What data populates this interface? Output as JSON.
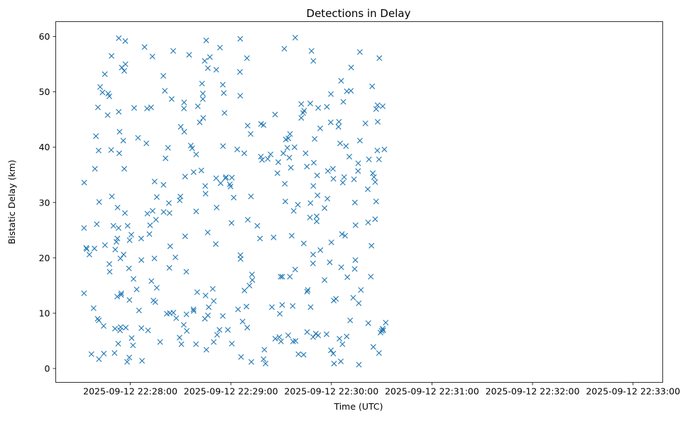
{
  "chart_data": {
    "type": "scatter",
    "title": "Detections in Delay",
    "xlabel": "Time (UTC)",
    "ylabel": "Bistatic Delay (km)",
    "x_tick_labels": [
      "2025-09-12 22:28:00",
      "2025-09-12 22:29:00",
      "2025-09-12 22:30:00",
      "2025-09-12 22:31:00",
      "2025-09-12 22:32:00",
      "2025-09-12 22:33:00"
    ],
    "x_ticks_seconds": [
      0,
      60,
      120,
      180,
      240,
      300
    ],
    "x_range_seconds": [
      -44.5,
      317.7
    ],
    "y_ticks": [
      0,
      10,
      20,
      30,
      40,
      50,
      60
    ],
    "ylim": [
      -2.5,
      62.7
    ],
    "marker": "x",
    "color": "#1f77b4",
    "grid": false,
    "points": [
      [
        -27.5,
        33.6
      ],
      [
        -27.6,
        25.4
      ],
      [
        -27.6,
        13.6
      ],
      [
        -26.3,
        21.8
      ],
      [
        -26.0,
        21.6
      ],
      [
        -24.4,
        20.6
      ],
      [
        -23.2,
        2.6
      ],
      [
        -21.9,
        10.9
      ],
      [
        -21.4,
        21.7
      ],
      [
        -21.1,
        36.1
      ],
      [
        -20.5,
        42.0
      ],
      [
        -20.0,
        26.1
      ],
      [
        -19.5,
        9.0
      ],
      [
        -19.3,
        47.2
      ],
      [
        -18.9,
        39.4
      ],
      [
        -18.8,
        8.7
      ],
      [
        -18.7,
        1.7
      ],
      [
        -18.6,
        30.1
      ],
      [
        -18.0,
        50.9
      ],
      [
        -16.6,
        49.9
      ],
      [
        -15.9,
        7.7
      ],
      [
        -15.8,
        2.7
      ],
      [
        -15.2,
        53.2
      ],
      [
        -15.1,
        22.3
      ],
      [
        -13.5,
        45.8
      ],
      [
        -13.2,
        49.7
      ],
      [
        -12.5,
        49.2
      ],
      [
        -12.5,
        18.9
      ],
      [
        -12.3,
        17.5
      ],
      [
        -11.4,
        39.5
      ],
      [
        -11.2,
        56.5
      ],
      [
        -11.0,
        31.1
      ],
      [
        -10.1,
        25.8
      ],
      [
        -9.4,
        2.8
      ],
      [
        -9.1,
        7.2
      ],
      [
        -9.0,
        21.5
      ],
      [
        -8.3,
        22.9
      ],
      [
        -7.8,
        13.0
      ],
      [
        -7.7,
        23.5
      ],
      [
        -7.6,
        29.1
      ],
      [
        -7.2,
        4.5
      ],
      [
        -7.0,
        25.4
      ],
      [
        -6.9,
        59.7
      ],
      [
        -6.9,
        46.4
      ],
      [
        -6.6,
        38.9
      ],
      [
        -6.4,
        42.8
      ],
      [
        -6.1,
        6.9
      ],
      [
        -5.9,
        19.9
      ],
      [
        -5.8,
        7.5
      ],
      [
        -5.5,
        13.3
      ],
      [
        -5.4,
        13.6
      ],
      [
        -5.1,
        54.4
      ],
      [
        -4.2,
        41.2
      ],
      [
        -4.0,
        20.6
      ],
      [
        -3.6,
        36.1
      ],
      [
        -3.6,
        53.8
      ],
      [
        -3.2,
        28.1
      ],
      [
        -3.0,
        59.2
      ],
      [
        -2.9,
        55.0
      ],
      [
        -2.7,
        7.4
      ],
      [
        -1.9,
        1.2
      ],
      [
        -1.6,
        25.8
      ],
      [
        -0.8,
        18.1
      ],
      [
        -0.6,
        2.0
      ],
      [
        -0.5,
        12.4
      ],
      [
        -0.4,
        23.2
      ],
      [
        0.6,
        24.2
      ],
      [
        0.8,
        5.5
      ],
      [
        1.6,
        4.2
      ],
      [
        1.9,
        16.2
      ],
      [
        2.3,
        47.1
      ],
      [
        3.8,
        14.3
      ],
      [
        4.6,
        41.7
      ],
      [
        5.2,
        10.5
      ],
      [
        6.5,
        23.5
      ],
      [
        6.6,
        19.6
      ],
      [
        6.6,
        7.3
      ],
      [
        7.0,
        1.4
      ],
      [
        8.5,
        58.1
      ],
      [
        9.6,
        40.7
      ],
      [
        10.0,
        47.0
      ],
      [
        10.2,
        28.0
      ],
      [
        10.6,
        6.9
      ],
      [
        11.4,
        24.3
      ],
      [
        11.8,
        25.9
      ],
      [
        12.4,
        47.2
      ],
      [
        12.6,
        15.8
      ],
      [
        13.2,
        56.4
      ],
      [
        13.3,
        28.5
      ],
      [
        13.8,
        12.3
      ],
      [
        14.4,
        19.9
      ],
      [
        14.5,
        33.8
      ],
      [
        14.9,
        12.0
      ],
      [
        15.3,
        26.9
      ],
      [
        15.8,
        14.6
      ],
      [
        15.8,
        31.0
      ],
      [
        17.8,
        4.8
      ],
      [
        19.7,
        52.9
      ],
      [
        19.8,
        33.2
      ],
      [
        19.9,
        28.3
      ],
      [
        20.6,
        50.2
      ],
      [
        21.0,
        38.0
      ],
      [
        21.8,
        9.9
      ],
      [
        22.5,
        39.9
      ],
      [
        23.0,
        29.9
      ],
      [
        23.3,
        18.2
      ],
      [
        23.4,
        28.1
      ],
      [
        23.6,
        10.0
      ],
      [
        23.8,
        22.1
      ],
      [
        24.7,
        48.7
      ],
      [
        25.6,
        57.4
      ],
      [
        25.7,
        10.1
      ],
      [
        26.9,
        20.1
      ],
      [
        27.4,
        9.1
      ],
      [
        29.4,
        5.6
      ],
      [
        29.5,
        30.4
      ],
      [
        29.9,
        31.1
      ],
      [
        30.1,
        43.7
      ],
      [
        30.5,
        4.4
      ],
      [
        31.9,
        7.9
      ],
      [
        32.0,
        47.0
      ],
      [
        32.1,
        48.1
      ],
      [
        32.2,
        42.8
      ],
      [
        32.7,
        34.7
      ],
      [
        32.7,
        23.9
      ],
      [
        33.4,
        17.5
      ],
      [
        33.5,
        9.8
      ],
      [
        33.7,
        6.8
      ],
      [
        35.1,
        56.7
      ],
      [
        36.1,
        40.3
      ],
      [
        36.9,
        39.8
      ],
      [
        37.7,
        10.7
      ],
      [
        37.8,
        10.4
      ],
      [
        37.8,
        35.5
      ],
      [
        39.2,
        4.4
      ],
      [
        39.3,
        28.4
      ],
      [
        39.3,
        38.7
      ],
      [
        39.9,
        13.8
      ],
      [
        40.3,
        47.4
      ],
      [
        41.4,
        44.5
      ],
      [
        42.4,
        35.8
      ],
      [
        42.8,
        51.5
      ],
      [
        43.3,
        49.7
      ],
      [
        43.3,
        48.7
      ],
      [
        43.5,
        45.3
      ],
      [
        44.4,
        55.6
      ],
      [
        44.5,
        9.0
      ],
      [
        44.7,
        33.0
      ],
      [
        44.9,
        13.2
      ],
      [
        44.9,
        31.6
      ],
      [
        45.3,
        59.3
      ],
      [
        45.4,
        3.4
      ],
      [
        46.2,
        24.6
      ],
      [
        46.3,
        9.6
      ],
      [
        46.3,
        54.3
      ],
      [
        46.8,
        11.1
      ],
      [
        47.5,
        56.3
      ],
      [
        49.2,
        14.4
      ],
      [
        49.8,
        4.8
      ],
      [
        49.8,
        12.2
      ],
      [
        51.0,
        22.5
      ],
      [
        51.2,
        34.4
      ],
      [
        51.3,
        54.0
      ],
      [
        51.5,
        29.1
      ],
      [
        51.8,
        6.1
      ],
      [
        53.2,
        7.0
      ],
      [
        53.5,
        58.0
      ],
      [
        53.9,
        33.5
      ],
      [
        55.2,
        9.5
      ],
      [
        55.2,
        51.3
      ],
      [
        55.3,
        40.2
      ],
      [
        55.8,
        49.8
      ],
      [
        56.2,
        46.2
      ],
      [
        56.8,
        34.4
      ],
      [
        57.1,
        34.6
      ],
      [
        58.2,
        7.0
      ],
      [
        59.4,
        33.3
      ],
      [
        59.8,
        32.9
      ],
      [
        60.4,
        26.3
      ],
      [
        60.6,
        4.5
      ],
      [
        60.6,
        34.5
      ],
      [
        61.7,
        30.9
      ],
      [
        63.8,
        39.6
      ],
      [
        64.3,
        10.7
      ],
      [
        65.4,
        53.6
      ],
      [
        65.6,
        59.6
      ],
      [
        65.6,
        49.3
      ],
      [
        65.7,
        20.5
      ],
      [
        65.8,
        19.8
      ],
      [
        66.1,
        2.1
      ],
      [
        67.0,
        8.5
      ],
      [
        68.0,
        38.9
      ],
      [
        68.1,
        14.1
      ],
      [
        69.3,
        11.2
      ],
      [
        69.6,
        56.1
      ],
      [
        69.8,
        7.4
      ],
      [
        70.0,
        43.9
      ],
      [
        70.1,
        26.9
      ],
      [
        71.1,
        15.0
      ],
      [
        71.8,
        42.4
      ],
      [
        72.0,
        31.1
      ],
      [
        72.2,
        1.2
      ],
      [
        72.6,
        17.0
      ],
      [
        72.8,
        16.0
      ],
      [
        75.8,
        25.8
      ],
      [
        77.4,
        23.5
      ],
      [
        77.9,
        38.3
      ],
      [
        78.0,
        44.2
      ],
      [
        78.6,
        37.7
      ],
      [
        79.5,
        1.7
      ],
      [
        79.5,
        44.0
      ],
      [
        80.0,
        3.4
      ],
      [
        80.7,
        0.9
      ],
      [
        82.0,
        37.9
      ],
      [
        83.7,
        38.7
      ],
      [
        84.5,
        11.1
      ],
      [
        85.5,
        23.7
      ],
      [
        86.4,
        45.9
      ],
      [
        86.5,
        5.4
      ],
      [
        87.8,
        35.3
      ],
      [
        88.3,
        37.3
      ],
      [
        88.9,
        5.7
      ],
      [
        89.2,
        9.9
      ],
      [
        89.7,
        16.6
      ],
      [
        89.9,
        4.9
      ],
      [
        90.6,
        11.5
      ],
      [
        90.7,
        16.6
      ],
      [
        91.3,
        38.9
      ],
      [
        91.9,
        57.8
      ],
      [
        92.2,
        33.4
      ],
      [
        92.5,
        30.2
      ],
      [
        92.8,
        41.4
      ],
      [
        93.7,
        39.9
      ],
      [
        94.2,
        6.0
      ],
      [
        94.3,
        41.6
      ],
      [
        94.9,
        38.1
      ],
      [
        95.2,
        16.6
      ],
      [
        95.3,
        42.4
      ],
      [
        95.8,
        36.3
      ],
      [
        96.3,
        24.0
      ],
      [
        96.9,
        11.3
      ],
      [
        97.1,
        4.9
      ],
      [
        97.5,
        28.5
      ],
      [
        98.0,
        40.0
      ],
      [
        98.4,
        59.8
      ],
      [
        98.4,
        17.9
      ],
      [
        98.6,
        5.0
      ],
      [
        100.0,
        29.6
      ],
      [
        100.3,
        2.6
      ],
      [
        102.0,
        47.8
      ],
      [
        102.0,
        45.3
      ],
      [
        103.1,
        46.2
      ],
      [
        103.4,
        2.5
      ],
      [
        103.5,
        22.6
      ],
      [
        103.7,
        46.6
      ],
      [
        104.6,
        38.9
      ],
      [
        105.4,
        36.5
      ],
      [
        105.5,
        6.6
      ],
      [
        105.5,
        13.9
      ],
      [
        105.9,
        14.2
      ],
      [
        107.2,
        27.3
      ],
      [
        107.4,
        47.9
      ],
      [
        107.5,
        29.9
      ],
      [
        107.6,
        11.1
      ],
      [
        108.1,
        57.4
      ],
      [
        109.0,
        19.0
      ],
      [
        109.1,
        5.7
      ],
      [
        109.1,
        20.6
      ],
      [
        109.2,
        33.0
      ],
      [
        109.2,
        55.6
      ],
      [
        109.5,
        37.2
      ],
      [
        110.0,
        41.5
      ],
      [
        110.7,
        6.3
      ],
      [
        111.2,
        26.6
      ],
      [
        111.2,
        27.5
      ],
      [
        111.5,
        34.9
      ],
      [
        111.7,
        31.3
      ],
      [
        112.1,
        47.1
      ],
      [
        112.1,
        6.0
      ],
      [
        113.3,
        43.4
      ],
      [
        113.4,
        21.4
      ],
      [
        115.9,
        29.0
      ],
      [
        115.9,
        16.0
      ],
      [
        117.1,
        6.2
      ],
      [
        117.3,
        47.3
      ],
      [
        117.6,
        30.7
      ],
      [
        117.9,
        35.7
      ],
      [
        119.0,
        19.2
      ],
      [
        119.6,
        44.5
      ],
      [
        119.7,
        49.6
      ],
      [
        119.7,
        3.3
      ],
      [
        120.0,
        22.8
      ],
      [
        120.9,
        36.1
      ],
      [
        121.1,
        2.7
      ],
      [
        121.2,
        34.3
      ],
      [
        121.4,
        12.3
      ],
      [
        121.6,
        0.9
      ],
      [
        122.7,
        12.6
      ],
      [
        124.2,
        43.7
      ],
      [
        124.5,
        44.6
      ],
      [
        124.8,
        5.4
      ],
      [
        125.2,
        40.7
      ],
      [
        125.6,
        1.3
      ],
      [
        125.8,
        52.0
      ],
      [
        125.9,
        18.3
      ],
      [
        126.3,
        24.3
      ],
      [
        126.6,
        4.4
      ],
      [
        126.8,
        33.6
      ],
      [
        127.1,
        48.2
      ],
      [
        127.6,
        34.6
      ],
      [
        128.2,
        24.0
      ],
      [
        128.7,
        40.2
      ],
      [
        129.1,
        5.8
      ],
      [
        129.2,
        50.1
      ],
      [
        129.5,
        16.5
      ],
      [
        130.7,
        38.3
      ],
      [
        131.2,
        8.7
      ],
      [
        131.6,
        50.2
      ],
      [
        131.8,
        54.4
      ],
      [
        133.0,
        12.8
      ],
      [
        133.5,
        34.2
      ],
      [
        133.9,
        18.0
      ],
      [
        134.0,
        30.0
      ],
      [
        134.3,
        19.6
      ],
      [
        134.4,
        25.9
      ],
      [
        135.9,
        35.7
      ],
      [
        136.0,
        37.1
      ],
      [
        136.3,
        11.8
      ],
      [
        136.4,
        0.7
      ],
      [
        137.0,
        57.2
      ],
      [
        137.0,
        41.2
      ],
      [
        137.6,
        14.2
      ],
      [
        140.3,
        44.3
      ],
      [
        141.7,
        32.4
      ],
      [
        141.9,
        26.4
      ],
      [
        142.0,
        8.2
      ],
      [
        142.4,
        37.8
      ],
      [
        143.5,
        16.6
      ],
      [
        143.9,
        22.2
      ],
      [
        144.3,
        51.0
      ],
      [
        144.7,
        35.3
      ],
      [
        145.0,
        3.9
      ],
      [
        145.4,
        34.6
      ],
      [
        146.1,
        33.7
      ],
      [
        146.1,
        27.0
      ],
      [
        146.7,
        30.2
      ],
      [
        146.7,
        46.9
      ],
      [
        147.4,
        39.4
      ],
      [
        147.5,
        47.6
      ],
      [
        147.6,
        44.6
      ],
      [
        148.4,
        2.8
      ],
      [
        148.4,
        37.8
      ],
      [
        148.6,
        56.1
      ],
      [
        149.3,
        6.5
      ],
      [
        150.0,
        6.8
      ],
      [
        150.6,
        7.2
      ],
      [
        150.6,
        47.4
      ],
      [
        150.9,
        6.9
      ],
      [
        151.6,
        39.6
      ],
      [
        152.4,
        8.3
      ]
    ]
  }
}
